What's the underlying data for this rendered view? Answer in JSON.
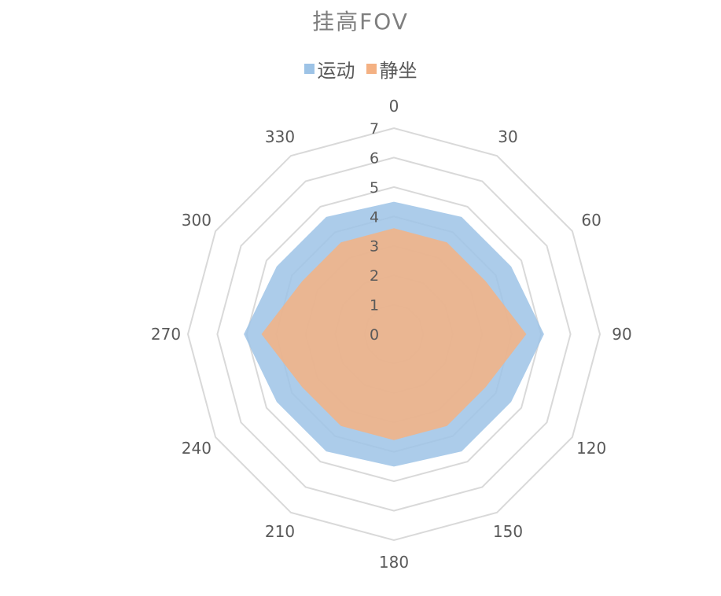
{
  "chart_data": {
    "type": "radar",
    "title": "挂高FOV",
    "categories": [
      "0",
      "30",
      "60",
      "90",
      "120",
      "150",
      "180",
      "210",
      "240",
      "270",
      "300",
      "330"
    ],
    "rlim": [
      0,
      7
    ],
    "r_ticks": [
      "0",
      "1",
      "2",
      "3",
      "4",
      "5",
      "6",
      "7"
    ],
    "legend_position": "top",
    "series": [
      {
        "name": "运动",
        "color": "#9dc3e6",
        "values": [
          4.5,
          4.6,
          4.6,
          5.1,
          4.6,
          4.6,
          4.5,
          4.6,
          4.6,
          5.1,
          4.6,
          4.6
        ]
      },
      {
        "name": "静坐",
        "color": "#f4b183",
        "values": [
          3.6,
          3.6,
          3.6,
          4.5,
          3.6,
          3.6,
          3.6,
          3.6,
          3.6,
          4.5,
          3.6,
          3.6
        ]
      }
    ]
  }
}
